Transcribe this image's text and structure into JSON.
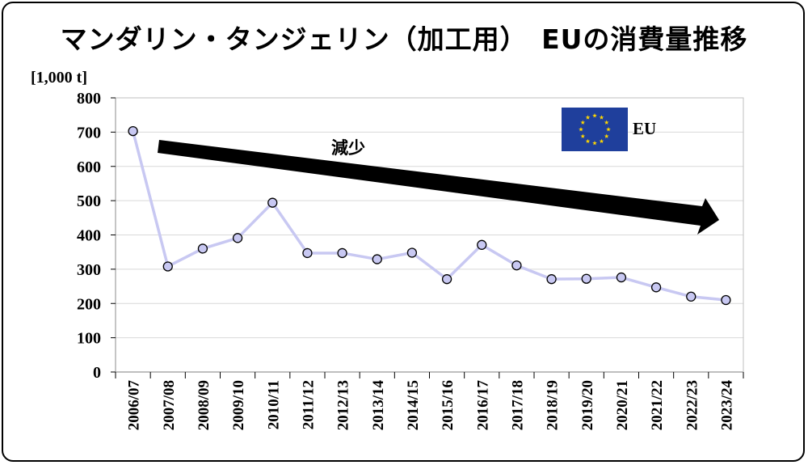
{
  "chart_data": {
    "type": "line",
    "title": "マンダリン・タンジェリン（加工用）　EUの消費量推移",
    "ylabel": "[1,000 t]",
    "xlabel": "",
    "ylim": [
      0,
      800
    ],
    "yticks": [
      0,
      100,
      200,
      300,
      400,
      500,
      600,
      700,
      800
    ],
    "grid": true,
    "legend": "top-right",
    "categories": [
      "2006/07",
      "2007/08",
      "2008/09",
      "2009/10",
      "2010/11",
      "2011/12",
      "2012/13",
      "2013/14",
      "2014/15",
      "2015/16",
      "2016/17",
      "2017/18",
      "2018/19",
      "2019/20",
      "2020/21",
      "2021/22",
      "2022/23",
      "2023/24"
    ],
    "series": [
      {
        "name": "EU",
        "values": [
          703,
          308,
          360,
          391,
          494,
          347,
          347,
          329,
          348,
          271,
          371,
          311,
          271,
          272,
          276,
          247,
          220,
          210
        ],
        "color": "#c8c8f2"
      }
    ],
    "annotations": [
      {
        "text": "減少",
        "kind": "trend-arrow-down"
      }
    ],
    "colors": {
      "eu_flag": "#1f3f9c",
      "eu_star": "#ffd700",
      "grid": "#d9d9d9",
      "marker_fill": "#c8c8f2"
    }
  }
}
